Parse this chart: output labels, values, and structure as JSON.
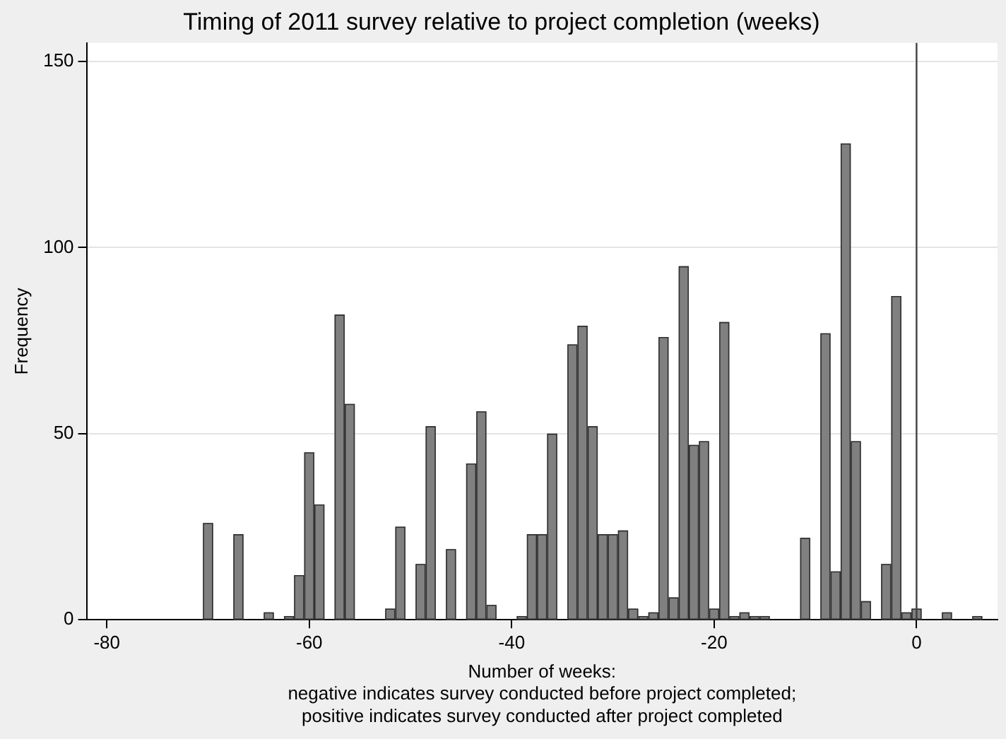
{
  "chart_data": {
    "type": "histogram",
    "title": "Timing of 2011 survey relative to project completion (weeks)",
    "xlabel": "Number of weeks:\nnegative indicates survey conducted before project completed;\npositive indicates survey conducted after project completed",
    "ylabel": "Frequency",
    "bins": [
      -70.5,
      -69.5,
      -67.5,
      -66.5,
      -64.5,
      -63.5,
      -62.5,
      -61.5,
      -60.5,
      -59.5,
      -58.5,
      -57.5,
      -56.5,
      -55.5,
      -52.5,
      -51.5,
      -50.5,
      -49.5,
      -48.5,
      -47.5,
      -46.5,
      -45.5,
      -44.5,
      -43.5,
      -42.5,
      -41.5,
      -39.5,
      -38.5,
      -37.5,
      -36.5,
      -35.5,
      -34.5,
      -33.5,
      -32.5,
      -31.5,
      -30.5,
      -29.5,
      -28.5,
      -27.5,
      -26.5,
      -25.5,
      -24.5,
      -23.5,
      -22.5,
      -21.5,
      -20.5,
      -19.5,
      -18.5,
      -17.5,
      -16.5,
      -15.5,
      -14.5,
      -11.5,
      -10.5,
      -9.5,
      -8.5,
      -7.5,
      -6.5,
      -5.5,
      -4.5,
      -3.5,
      -2.5,
      -1.5,
      -0.5,
      0.5,
      2.5,
      3.5,
      5.5,
      6.5
    ],
    "values": [
      26,
      0,
      23,
      0,
      2,
      0,
      1,
      12,
      45,
      31,
      0,
      82,
      58,
      0,
      3,
      25,
      0,
      15,
      52,
      0,
      19,
      0,
      42,
      56,
      4,
      0,
      1,
      23,
      23,
      50,
      0,
      74,
      79,
      52,
      23,
      23,
      24,
      3,
      1,
      2,
      76,
      6,
      95,
      47,
      48,
      3,
      80,
      1,
      2,
      1,
      1,
      0,
      22,
      0,
      77,
      13,
      128,
      48,
      5,
      0,
      15,
      87,
      2,
      3,
      0,
      2,
      0,
      1
    ],
    "color": "#808080",
    "xlim": [
      -82,
      8
    ],
    "xticks": [
      -80,
      -60,
      -40,
      -20,
      0
    ],
    "ylim": [
      0,
      155
    ],
    "yticks": [
      0,
      50,
      100,
      150
    ],
    "grid": "y",
    "ref_lines": [
      {
        "axis": "x",
        "value": 0,
        "color": "#404040"
      }
    ]
  }
}
